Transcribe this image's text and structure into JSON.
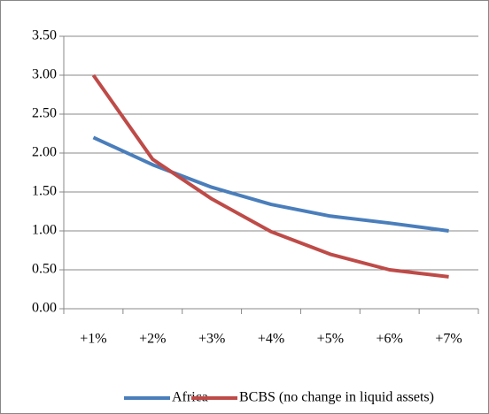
{
  "chart_data": {
    "type": "line",
    "categories": [
      "+1%",
      "+2%",
      "+3%",
      "+4%",
      "+5%",
      "+6%",
      "+7%"
    ],
    "series": [
      {
        "name": "Africa",
        "color": "#4a7ebb",
        "values": [
          2.2,
          1.85,
          1.56,
          1.34,
          1.19,
          1.1,
          1.0
        ]
      },
      {
        "name": "BCBS (no change in liquid assets)",
        "color": "#be4b48",
        "values": [
          3.0,
          1.92,
          1.41,
          0.99,
          0.7,
          0.5,
          0.41
        ]
      }
    ],
    "ylim": [
      0,
      3.5
    ],
    "yticks": [
      {
        "value": 0,
        "label": "0.00"
      },
      {
        "value": 0.5,
        "label": "0.50"
      },
      {
        "value": 1,
        "label": "1.00"
      },
      {
        "value": 1.5,
        "label": "1.50"
      },
      {
        "value": 2,
        "label": "2.00"
      },
      {
        "value": 2.5,
        "label": "2.50"
      },
      {
        "value": 3,
        "label": "3.00"
      },
      {
        "value": 3.5,
        "label": "3.50"
      }
    ],
    "grid": true,
    "legend": "bottom"
  }
}
